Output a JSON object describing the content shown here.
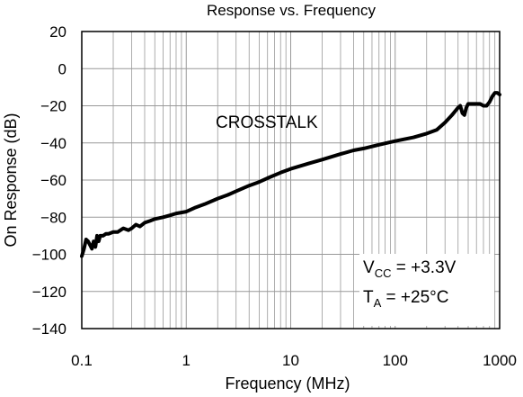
{
  "chart_data": {
    "type": "line",
    "title": "Response vs. Frequency",
    "xlabel": "Frequency (MHz)",
    "ylabel": "On Response (dB)",
    "x_scale": "log",
    "xlim": [
      0.1,
      1000
    ],
    "ylim": [
      -140,
      20
    ],
    "x_ticks": [
      0.1,
      1,
      10,
      100,
      1000
    ],
    "x_tick_labels": [
      "0.1",
      "1",
      "10",
      "100",
      "1000"
    ],
    "y_ticks": [
      20,
      0,
      -20,
      -40,
      -60,
      -80,
      -100,
      -120,
      -140
    ],
    "y_tick_labels": [
      "20",
      "0",
      "−20",
      "−40",
      "−60",
      "−80",
      "−100",
      "−120",
      "−140"
    ],
    "grid": true,
    "series": [
      {
        "name": "",
        "label": "CROSSTALK",
        "x": [
          0.1,
          0.105,
          0.11,
          0.115,
          0.12,
          0.125,
          0.13,
          0.135,
          0.14,
          0.145,
          0.15,
          0.16,
          0.17,
          0.18,
          0.2,
          0.22,
          0.25,
          0.28,
          0.3,
          0.33,
          0.36,
          0.4,
          0.45,
          0.5,
          0.6,
          0.7,
          0.8,
          1,
          1.2,
          1.5,
          2,
          2.5,
          3,
          4,
          5,
          6,
          8,
          10,
          15,
          20,
          30,
          40,
          50,
          70,
          100,
          150,
          200,
          250,
          300,
          350,
          400,
          420,
          440,
          460,
          480,
          500,
          550,
          600,
          650,
          700,
          750,
          800,
          850,
          900,
          950,
          1000
        ],
        "y": [
          -101,
          -97,
          -92,
          -93,
          -95,
          -97,
          -93,
          -96,
          -90,
          -93,
          -90,
          -90,
          -89,
          -89,
          -88,
          -88,
          -86,
          -87,
          -86,
          -84,
          -85,
          -83,
          -82,
          -81,
          -80,
          -79,
          -78,
          -77,
          -75,
          -73,
          -70,
          -68,
          -66,
          -63,
          -61,
          -59,
          -56,
          -54,
          -51,
          -49,
          -46,
          -44,
          -43,
          -41,
          -39,
          -37,
          -35,
          -33,
          -29,
          -25,
          -21,
          -20,
          -24,
          -25,
          -21,
          -19,
          -19,
          -19,
          -19,
          -20,
          -20,
          -18,
          -15,
          -13,
          -13,
          -14
        ]
      }
    ],
    "annotations": {
      "curve_label": "CROSSTALK",
      "vcc_main": "V",
      "vcc_sub": "CC",
      "vcc_value": " = +3.3V",
      "ta_main": "T",
      "ta_sub": "A",
      "ta_value": " = +25°C"
    },
    "colors": {
      "line": "#000000",
      "grid": "#999999",
      "frame": "#000000"
    }
  }
}
